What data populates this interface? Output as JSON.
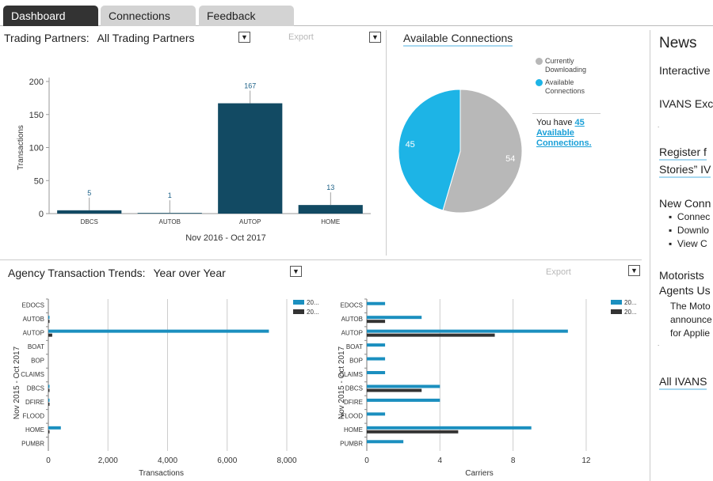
{
  "tabs": [
    {
      "label": "Dashboard",
      "active": true
    },
    {
      "label": "Connections",
      "active": false
    },
    {
      "label": "Feedback",
      "active": false
    }
  ],
  "trading_partners": {
    "label": "Trading Partners:",
    "selected": "All Trading Partners",
    "export_label": "Export"
  },
  "available_connections": {
    "title": "Available Connections",
    "legend": [
      {
        "label": "Currently Downloading",
        "color": "#b8b8b8"
      },
      {
        "label": "Available Connections",
        "color": "#1db4e6"
      }
    ],
    "you_have_prefix": "You have",
    "you_have_link": "45 Available Connections."
  },
  "trends": {
    "label": "Agency Transaction Trends:",
    "selected": "Year over Year",
    "export_label": "Export",
    "legend_labels": [
      "20...",
      "20..."
    ]
  },
  "news": {
    "title": "News",
    "items": [
      "Interactive",
      "IVANS Exc",
      "Register f",
      "Stories” IV",
      "New Conn",
      "Connec",
      "Downlo",
      "View C",
      "Motorists",
      "Agents Us",
      "The Moto",
      "announce",
      "for Applie",
      "All IVANS"
    ]
  },
  "chart_data": [
    {
      "type": "bar",
      "categories": [
        "DBCS",
        "AUTOB",
        "AUTOP",
        "HOME"
      ],
      "values": [
        5,
        1,
        167,
        13
      ],
      "xlabel": "Nov 2016 - Oct 2017",
      "ylabel": "Transactions",
      "ylim": [
        0,
        200
      ],
      "yticks": [
        0,
        50,
        100,
        150,
        200
      ],
      "color": "#124a63",
      "grid": false
    },
    {
      "type": "pie",
      "categories": [
        "Currently Downloading",
        "Available Connections"
      ],
      "values": [
        54,
        45
      ],
      "colors": [
        "#b8b8b8",
        "#1db4e6"
      ]
    },
    {
      "type": "bar",
      "orientation": "horizontal",
      "categories": [
        "EDOCS",
        "AUTOB",
        "AUTOP",
        "BOAT",
        "BOP",
        "CLAIMS",
        "DBCS",
        "DFIRE",
        "FLOOD",
        "HOME",
        "PUMBR"
      ],
      "series": [
        {
          "values": [
            0,
            20,
            7400,
            0,
            0,
            0,
            25,
            20,
            0,
            420,
            0
          ],
          "color": "#1b8fbf"
        },
        {
          "values": [
            0,
            5,
            130,
            0,
            0,
            0,
            5,
            5,
            0,
            5,
            0
          ],
          "color": "#333333"
        }
      ],
      "xlabel": "Transactions",
      "ylabel": "Nov 2015 - Oct 2017",
      "xlim": [
        0,
        8000
      ],
      "xticks": [
        0,
        2000,
        4000,
        6000,
        8000
      ],
      "xtick_labels": [
        "0",
        "2,000",
        "4,000",
        "6,000",
        "8,000"
      ],
      "grid": true
    },
    {
      "type": "bar",
      "orientation": "horizontal",
      "categories": [
        "EDOCS",
        "AUTOB",
        "AUTOP",
        "BOAT",
        "BOP",
        "CLAIMS",
        "DBCS",
        "DFIRE",
        "FLOOD",
        "HOME",
        "PUMBR"
      ],
      "series": [
        {
          "values": [
            1,
            3,
            11,
            1,
            1,
            1,
            4,
            4,
            1,
            9,
            2
          ],
          "color": "#1b8fbf"
        },
        {
          "values": [
            0,
            1,
            7,
            0,
            0,
            0,
            3,
            0,
            0,
            5,
            0
          ],
          "color": "#333333"
        }
      ],
      "xlabel": "Carriers",
      "ylabel": "Nov 2015 - Oct 2017",
      "xlim": [
        0,
        13
      ],
      "xticks": [
        0,
        4,
        8,
        12
      ],
      "xtick_labels": [
        "0",
        "4",
        "8",
        "12"
      ],
      "grid": true
    }
  ]
}
